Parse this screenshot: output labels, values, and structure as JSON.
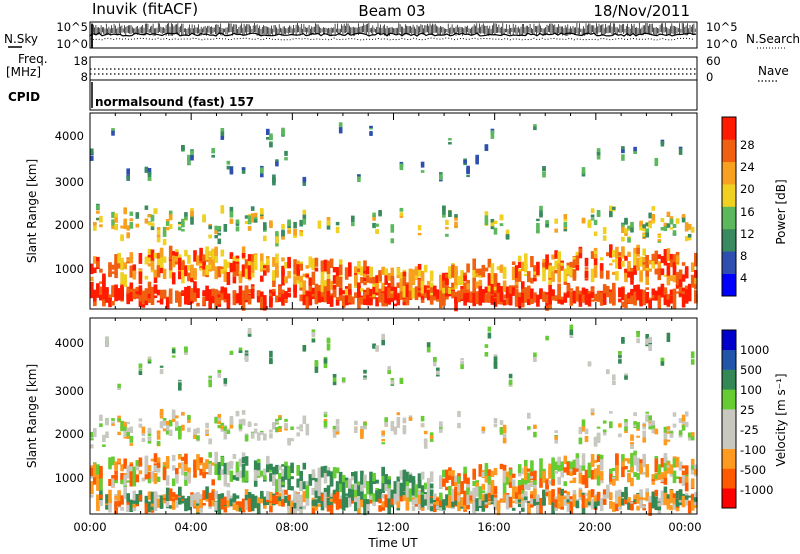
{
  "header": {
    "station": "Inuvik (fitACF)",
    "beam": "Beam 03",
    "date": "18/Nov/2011"
  },
  "strips": {
    "nsky_label": "N.Sky",
    "nsearch_label": "N.Search",
    "nsky_ticks": [
      "10^5",
      "10^0"
    ],
    "nsearch_ticks": [
      "10^5",
      "10^0"
    ],
    "freq_label_1": "Freq.",
    "freq_label_2": "[MHz]",
    "freq_ticks": [
      "18",
      "8"
    ],
    "nave_label": "Nave",
    "nave_ticks": [
      "60",
      "0"
    ],
    "cpid_label": "CPID",
    "cpid_value": "normalsound (fast) 157"
  },
  "colors": {
    "power": [
      "#0000ff",
      "#2f4fb0",
      "#3a8a60",
      "#5cb85c",
      "#f0d020",
      "#f8a020",
      "#f06010",
      "#ff1a00"
    ],
    "velocity": [
      "#ff0000",
      "#ff5a00",
      "#ff9a20",
      "#c8c8c0",
      "#c8c8c0",
      "#66cc33",
      "#338855",
      "#2255aa",
      "#0000cc"
    ]
  },
  "chart_data": [
    {
      "type": "heatmap",
      "name": "power-panel",
      "ylabel": "Slant Range [km]",
      "yticks": [
        "1000",
        "2000",
        "3000",
        "4000"
      ],
      "ylim": [
        180,
        4500
      ],
      "colorbar": {
        "label": "Power [dB]",
        "ticks": [
          "28",
          "24",
          "20",
          "16",
          "12",
          "8",
          "4"
        ],
        "range": [
          0,
          32
        ]
      }
    },
    {
      "type": "heatmap",
      "name": "velocity-panel",
      "xlabel": "Time UT",
      "xticks": [
        "00:00",
        "04:00",
        "08:00",
        "12:00",
        "16:00",
        "20:00",
        "00:00"
      ],
      "ylabel": "Slant Range [km]",
      "yticks": [
        "1000",
        "2000",
        "3000",
        "4000"
      ],
      "ylim": [
        180,
        4500
      ],
      "colorbar": {
        "label": "Velocity [m s⁻¹]",
        "ticks": [
          "1000",
          "500",
          "100",
          "25",
          "-25",
          "-100",
          "-500",
          "-1000"
        ]
      }
    }
  ]
}
